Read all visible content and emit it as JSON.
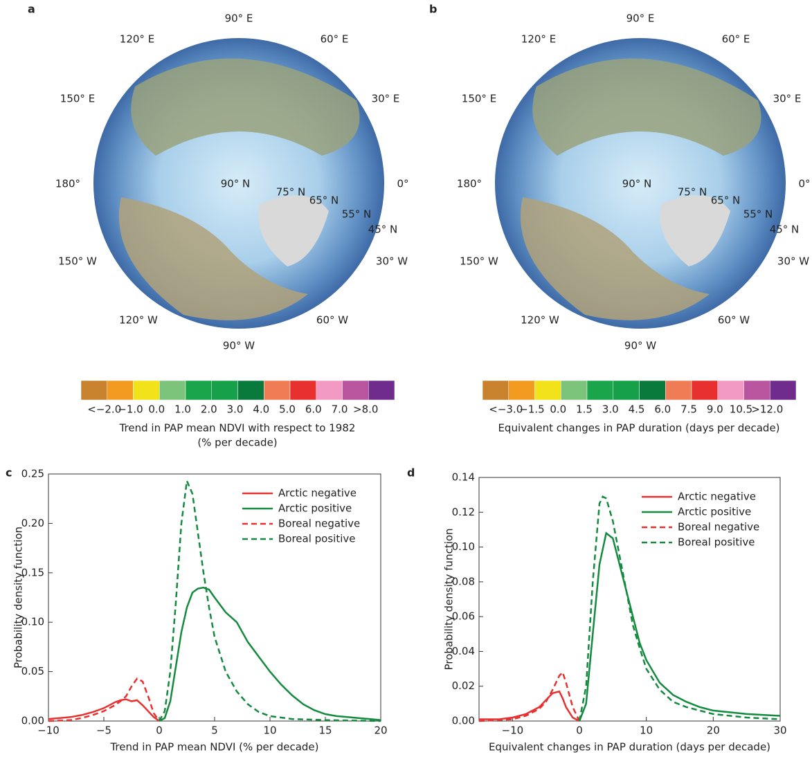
{
  "chart_data": [
    {
      "type": "map",
      "panel": "a",
      "graticule_labels": [
        "90° E",
        "120° E",
        "60° E",
        "150° E",
        "30° E",
        "180°",
        "0°",
        "90° N",
        "75° N",
        "65° N",
        "55° N",
        "45° N",
        "150° W",
        "30° W",
        "120° W",
        "60° W",
        "90° W"
      ],
      "colorbar": {
        "colors": [
          "#c8822e",
          "#f39a21",
          "#f2e21a",
          "#7cc47b",
          "#1aa54b",
          "#17a04a",
          "#0a7a3c",
          "#f07c55",
          "#e8302f",
          "#f29ac3",
          "#b8559e",
          "#6f2c8c"
        ],
        "labels": [
          "<−2.0",
          "−1.0",
          "0.0",
          "1.0",
          "2.0",
          "3.0",
          "4.0",
          "5.0",
          "6.0",
          "7.0",
          ">8.0"
        ],
        "title": "Trend in PAP mean NDVI with respect to 1982",
        "subtitle": "(% per decade)"
      }
    },
    {
      "type": "map",
      "panel": "b",
      "graticule_labels": [
        "90° E",
        "120° E",
        "60° E",
        "150° E",
        "30° E",
        "180°",
        "0°",
        "90° N",
        "75° N",
        "65° N",
        "55° N",
        "45° N",
        "150° W",
        "30° W",
        "120° W",
        "60° W",
        "90° W"
      ],
      "colorbar": {
        "colors": [
          "#c8822e",
          "#f39a21",
          "#f2e21a",
          "#7cc47b",
          "#1aa54b",
          "#17a04a",
          "#0a7a3c",
          "#f07c55",
          "#e8302f",
          "#f29ac3",
          "#b8559e",
          "#6f2c8c"
        ],
        "labels": [
          "<−3.0",
          "−1.5",
          "0.0",
          "1.5",
          "3.0",
          "4.5",
          "6.0",
          "7.5",
          "9.0",
          "10.5",
          ">12.0"
        ],
        "title": "Equivalent changes in PAP duration (days per decade)"
      }
    },
    {
      "type": "line",
      "panel": "c",
      "xlabel": "Trend in PAP mean NDVI (% per decade)",
      "ylabel": "Probability density function",
      "xlim": [
        -10,
        20
      ],
      "xticks": [
        {
          "value": -10,
          "label": "−10"
        },
        {
          "value": -5,
          "label": "−5"
        },
        0,
        5,
        10,
        15,
        20
      ],
      "ylim": [
        0,
        0.25
      ],
      "yticks": [
        {
          "value": 0,
          "label": "0.00"
        },
        0.05,
        {
          "value": 0.1,
          "label": "0.10"
        },
        0.15,
        {
          "value": 0.2,
          "label": "0.20"
        },
        0.25
      ],
      "legend": "upper right",
      "series": [
        {
          "name": "Arctic negative",
          "color": "#e8302f",
          "dash": false,
          "x": [
            -10,
            -9,
            -8,
            -7,
            -6,
            -5,
            -4.5,
            -4,
            -3.5,
            -3,
            -2.5,
            -2,
            -1.5,
            -1,
            -0.5,
            0
          ],
          "values": [
            0.002,
            0.003,
            0.004,
            0.006,
            0.009,
            0.013,
            0.016,
            0.019,
            0.021,
            0.022,
            0.02,
            0.021,
            0.016,
            0.01,
            0.004,
            0
          ]
        },
        {
          "name": "Arctic positive",
          "color": "#138a3e",
          "dash": false,
          "x": [
            0,
            0.5,
            1,
            1.5,
            2,
            2.5,
            3,
            3.5,
            4,
            4.5,
            5,
            6,
            7,
            8,
            9,
            10,
            11,
            12,
            13,
            14,
            15,
            16,
            17,
            18,
            19,
            20
          ],
          "values": [
            0,
            0.003,
            0.02,
            0.055,
            0.09,
            0.115,
            0.13,
            0.134,
            0.135,
            0.133,
            0.125,
            0.11,
            0.1,
            0.08,
            0.065,
            0.05,
            0.037,
            0.026,
            0.017,
            0.011,
            0.007,
            0.005,
            0.004,
            0.003,
            0.002,
            0.001
          ]
        },
        {
          "name": "Boreal negative",
          "color": "#e8302f",
          "dash": true,
          "x": [
            -10,
            -8,
            -7,
            -6,
            -5,
            -4,
            -3.5,
            -3,
            -2.5,
            -2,
            -1.5,
            -1,
            -0.5,
            0
          ],
          "values": [
            0,
            0.001,
            0.003,
            0.006,
            0.01,
            0.016,
            0.02,
            0.025,
            0.035,
            0.043,
            0.04,
            0.025,
            0.008,
            0
          ]
        },
        {
          "name": "Boreal positive",
          "color": "#138a3e",
          "dash": true,
          "x": [
            0,
            0.5,
            1,
            1.5,
            2,
            2.5,
            3,
            3.5,
            4,
            4.5,
            5,
            6,
            7,
            8,
            9,
            10,
            12,
            15,
            20
          ],
          "values": [
            0,
            0.01,
            0.05,
            0.12,
            0.2,
            0.243,
            0.23,
            0.19,
            0.15,
            0.115,
            0.085,
            0.05,
            0.03,
            0.017,
            0.009,
            0.005,
            0.002,
            0.001,
            0
          ]
        }
      ]
    },
    {
      "type": "line",
      "panel": "d",
      "xlabel": "Equivalent changes in PAP duration (days per decade)",
      "ylabel": "Probability density function",
      "xlim": [
        -15,
        30
      ],
      "xticks": [
        {
          "value": -10,
          "label": "−10"
        },
        0,
        10,
        20,
        30
      ],
      "ylim": [
        0,
        0.14
      ],
      "yticks": [
        {
          "value": 0,
          "label": "0.00"
        },
        0.02,
        0.04,
        0.06,
        0.08,
        {
          "value": 0.1,
          "label": "0.10"
        },
        0.12,
        0.14
      ],
      "legend": "upper right",
      "series": [
        {
          "name": "Arctic negative",
          "color": "#e8302f",
          "dash": false,
          "x": [
            -15,
            -12,
            -10,
            -8,
            -6,
            -5,
            -4,
            -3,
            -2.5,
            -2,
            -1,
            0
          ],
          "values": [
            0.001,
            0.001,
            0.002,
            0.004,
            0.008,
            0.012,
            0.016,
            0.017,
            0.013,
            0.008,
            0.002,
            0
          ]
        },
        {
          "name": "Arctic positive",
          "color": "#138a3e",
          "dash": false,
          "x": [
            0,
            1,
            2,
            3,
            4,
            5,
            6,
            7,
            8,
            9,
            10,
            12,
            14,
            16,
            18,
            20,
            25,
            30
          ],
          "values": [
            0,
            0.01,
            0.05,
            0.09,
            0.108,
            0.105,
            0.09,
            0.075,
            0.06,
            0.045,
            0.035,
            0.022,
            0.015,
            0.011,
            0.008,
            0.006,
            0.004,
            0.003
          ]
        },
        {
          "name": "Boreal negative",
          "color": "#e8302f",
          "dash": true,
          "x": [
            -15,
            -10,
            -8,
            -6,
            -5,
            -4,
            -3,
            -2.5,
            -2,
            -1,
            0
          ],
          "values": [
            0,
            0.001,
            0.003,
            0.007,
            0.011,
            0.018,
            0.026,
            0.028,
            0.022,
            0.008,
            0
          ]
        },
        {
          "name": "Boreal positive",
          "color": "#138a3e",
          "dash": true,
          "x": [
            0,
            1,
            2,
            3,
            3.5,
            4,
            5,
            6,
            7,
            8,
            9,
            10,
            12,
            14,
            16,
            18,
            20,
            25,
            30
          ],
          "values": [
            0,
            0.02,
            0.08,
            0.125,
            0.129,
            0.128,
            0.115,
            0.095,
            0.075,
            0.055,
            0.042,
            0.03,
            0.018,
            0.011,
            0.008,
            0.006,
            0.004,
            0.002,
            0.001
          ]
        }
      ]
    }
  ]
}
